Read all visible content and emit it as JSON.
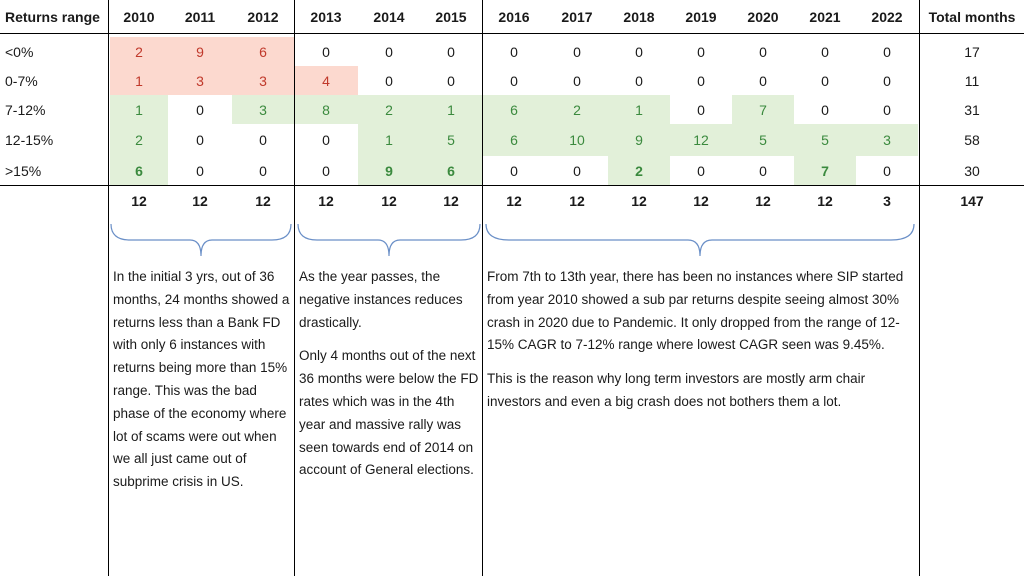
{
  "table": {
    "corner_label": "Returns range",
    "years": [
      "2010",
      "2011",
      "2012",
      "2013",
      "2014",
      "2015",
      "2016",
      "2017",
      "2018",
      "2019",
      "2020",
      "2021",
      "2022"
    ],
    "total_label": "Total months",
    "rows": [
      {
        "label": "<0%",
        "values": [
          2,
          9,
          6,
          0,
          0,
          0,
          0,
          0,
          0,
          0,
          0,
          0,
          0
        ],
        "total": 17
      },
      {
        "label": "0-7%",
        "values": [
          1,
          3,
          3,
          4,
          0,
          0,
          0,
          0,
          0,
          0,
          0,
          0,
          0
        ],
        "total": 11
      },
      {
        "label": "7-12%",
        "values": [
          1,
          0,
          3,
          8,
          2,
          1,
          6,
          2,
          1,
          0,
          7,
          0,
          0
        ],
        "total": 31
      },
      {
        "label": "12-15%",
        "values": [
          2,
          0,
          0,
          0,
          1,
          5,
          6,
          10,
          9,
          12,
          5,
          5,
          3
        ],
        "total": 58
      },
      {
        "label": ">15%",
        "values": [
          6,
          0,
          0,
          0,
          9,
          6,
          0,
          0,
          2,
          0,
          0,
          7,
          0
        ],
        "total": 30
      }
    ],
    "column_totals": [
      12,
      12,
      12,
      12,
      12,
      12,
      12,
      12,
      12,
      12,
      12,
      12,
      3
    ],
    "grand_total": 147,
    "highlight_colors": {
      "red_fill": "#fcd9cf",
      "green_fill": "#e2f0d9",
      "red_text": "#c0392b",
      "green_text": "#3b8a3e"
    }
  },
  "notes": {
    "group1": {
      "p1": "In the initial 3 yrs, out of 36 months, 24 months showed a returns less than a Bank FD with only 6 instances with returns being more than 15% range. This was the bad phase of the economy where lot of scams were out when we all just came out of subprime crisis in US."
    },
    "group2": {
      "p1": "As the year passes, the negative instances reduces drastically.",
      "p2": "Only 4 months out of the next 36 months were below the FD rates which was in the 4th year and massive rally was seen towards end of 2014 on account of General elections."
    },
    "group3": {
      "p1": "From 7th to 13th year, there has been no instances where SIP started from year 2010 showed a sub par returns despite seeing almost 30% crash in 2020 due to Pandemic. It only dropped from the range of 12-15% CAGR to 7-12% range where lowest CAGR seen was 9.45%.",
      "p2": "This is the reason why long term investors are mostly arm chair investors and even a big crash does not bothers them a lot."
    }
  }
}
